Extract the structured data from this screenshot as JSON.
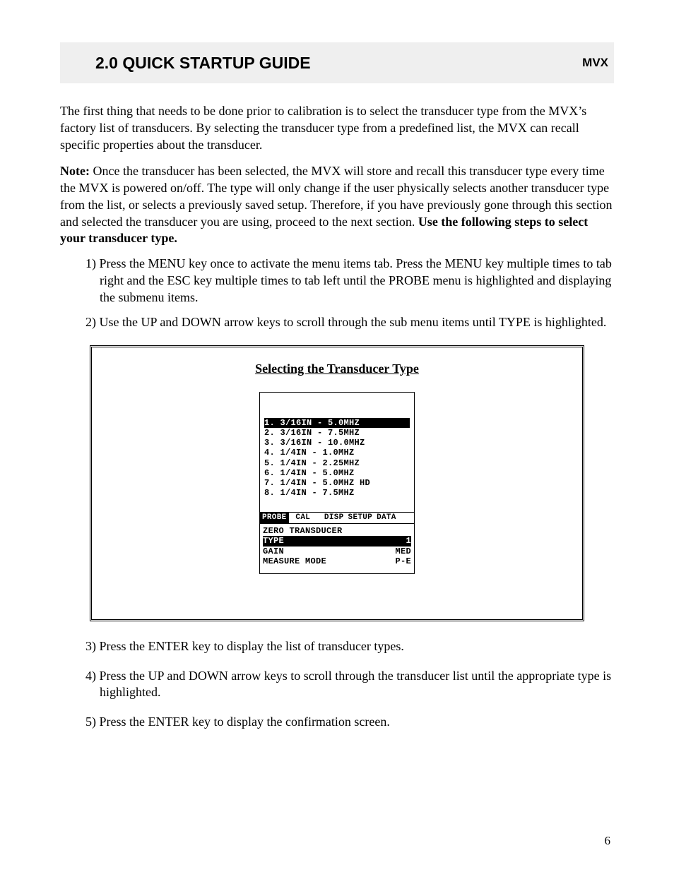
{
  "header": {
    "section": "2.0  QUICK STARTUP GUIDE",
    "product": "MVX"
  },
  "intro1": "The first thing that needs to be done prior to calibration is to select the transducer type from the MVX’s factory list of transducers. By selecting the transducer type from a predefined list, the MVX can recall specific properties about the transducer.",
  "intro2_lead": "Note: ",
  "intro2_body": "Once the transducer has been selected, the MVX will store and recall this transducer type every time the MVX is powered on/off. The type will only change if the user physically selects another transducer type from the list, or selects a previously saved setup. Therefore, if you have previously gone through this section and selected the transducer you are using, proceed to the next section. ",
  "intro2_tail": "Use the following steps to select your transducer type.",
  "step1": "1)  Press the MENU key once to activate the menu items tab.  Press the MENU key multiple times to tab right and the ESC key multiple times to tab left until the PROBE menu is highlighted and displaying the submenu items.",
  "step2": "2)  Use the UP and DOWN arrow keys to scroll through the sub menu items until TYPE is highlighted.",
  "figure": {
    "caption": "Selecting the Transducer Type",
    "list": [
      "1. 3/16IN - 5.0MHZ",
      "2. 3/16IN - 7.5MHZ",
      "3. 3/16IN - 10.0MHZ",
      "4. 1/4IN - 1.0MHZ",
      "5. 1/4IN - 2.25MHZ",
      "6. 1/4IN - 5.0MHZ",
      "7. 1/4IN - 5.0MHZ HD",
      "8. 1/4IN - 7.5MHZ"
    ],
    "selected_index": 0,
    "tabs": [
      "PROBE",
      " CAL ",
      " DISP",
      "SETUP",
      "DATA"
    ],
    "tab_selected_index": 0,
    "params": [
      {
        "label": "ZERO TRANSDUCER",
        "value": ""
      },
      {
        "label": "TYPE",
        "value": "1"
      },
      {
        "label": "GAIN",
        "value": "MED"
      },
      {
        "label": "MEASURE MODE",
        "value": "P-E"
      }
    ],
    "param_selected_index": 1
  },
  "step3": "3)  Press the ENTER key to display the list of transducer types.",
  "step4": "4)  Press the UP and DOWN arrow keys to scroll through the transducer list until the appropriate type is highlighted.",
  "step5": "5)  Press the ENTER key to display the confirmation screen.",
  "page_number": "6"
}
